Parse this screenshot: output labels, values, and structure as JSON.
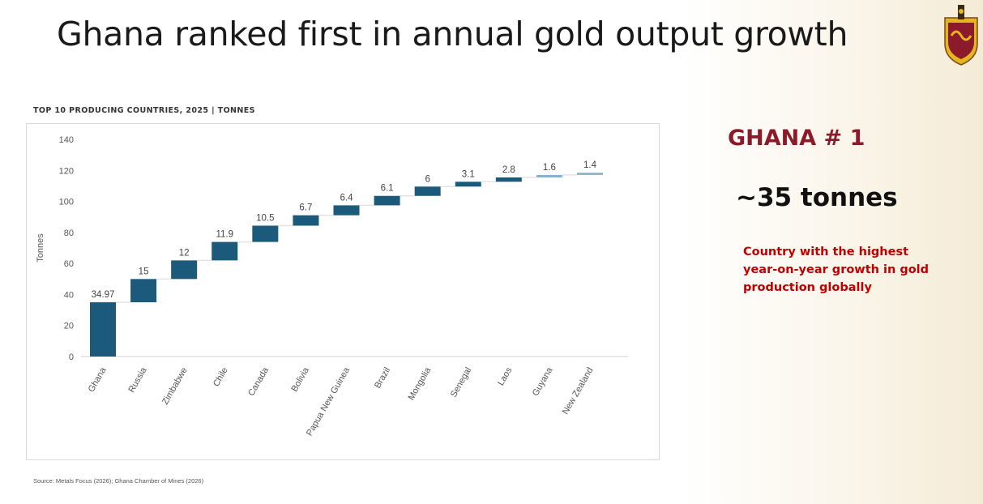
{
  "slide": {
    "title": "Ghana ranked first in annual gold output growth",
    "logo_icon": "university-crest-icon",
    "chart_caption": "TOP 10 PRODUCING COUNTRIES, 2025  |  TONNES",
    "source": "Source: Metals Focus (2026); Ghana Chamber of Mines (2026)",
    "side_heading": "GHANA # 1",
    "side_value": "~35 tonnes",
    "side_note": "Country with the highest year-on-year growth in gold production globally",
    "colors": {
      "title": "#1a1a1a",
      "side_heading": "#8b1a2b",
      "side_note": "#c00000",
      "bar_dark": "#1b5a7a",
      "bar_light": "#86b2cc"
    }
  },
  "chart_data": {
    "type": "bar",
    "subtype": "waterfall",
    "categories": [
      "Ghana",
      "Russia",
      "Zimbabwe",
      "Chile",
      "Canada",
      "Bolivia",
      "Papua New Guinea",
      "Brazil",
      "Mongolia",
      "Senegal",
      "Laos",
      "Guyana",
      "New Zealand"
    ],
    "values": [
      34.97,
      15,
      12,
      11.9,
      10.5,
      6.7,
      6.4,
      6.1,
      6,
      3.1,
      2.8,
      1.6,
      1.4
    ],
    "data_labels": [
      "34.97",
      "15",
      "12",
      "11.9",
      "10.5",
      "6.7",
      "6.4",
      "6.1",
      "6",
      "3.1",
      "2.8",
      "1.6",
      "1.4"
    ],
    "ylabel": "Tonnes",
    "yticks": [
      "0",
      "20",
      "40",
      "60",
      "80",
      "100",
      "120",
      "140"
    ],
    "ylim": [
      0,
      140
    ],
    "grid": false,
    "legend": "none"
  }
}
